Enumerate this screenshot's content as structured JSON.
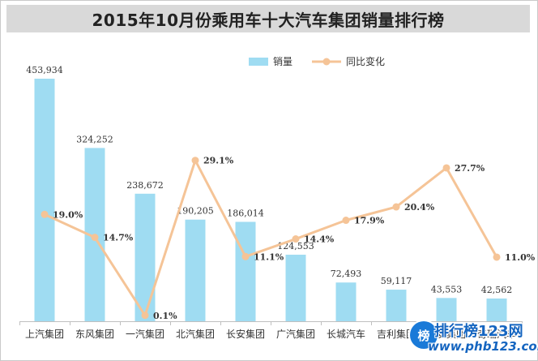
{
  "colors": {
    "bar": "#9fdcf2",
    "line": "#f5c497",
    "marker": "#f5c497",
    "title_bg": "#d9d9d9",
    "title_text": "#222222",
    "axis": "#bfbfbf",
    "label": "#333333"
  },
  "watermark": {
    "logo_text": "榜",
    "name": "排行榜123网",
    "url": "www.phb123.com"
  },
  "chart_data": {
    "type": "bar",
    "title": "2015年10月份乘用车十大汽车集团销量排行榜",
    "categories": [
      "上汽集团",
      "东风集团",
      "一汽集团",
      "北汽集团",
      "长安集团",
      "广汽集团",
      "长城汽车",
      "吉利集团",
      "长安集团",
      "奇瑞汽车"
    ],
    "series": [
      {
        "name": "销量",
        "type": "bar",
        "axis": "left",
        "values": [
          453934,
          324252,
          238672,
          190205,
          186014,
          124553,
          72493,
          59117,
          43553,
          42562
        ],
        "labels": [
          "453,934",
          "324,252",
          "238,672",
          "190,205",
          "186,014",
          "124,553",
          "72,493",
          "59,117",
          "43,553",
          "42,562"
        ]
      },
      {
        "name": "同比变化",
        "type": "line",
        "axis": "right",
        "values": [
          19.0,
          14.7,
          0.1,
          29.1,
          11.1,
          14.4,
          17.9,
          20.4,
          27.7,
          11.0
        ],
        "labels": [
          "19.0%",
          "14.7%",
          "0.1%",
          "29.1%",
          "11.1%",
          "14.4%",
          "17.9%",
          "20.4%",
          "27.7%",
          "11.0%"
        ]
      }
    ],
    "ylim_left": [
      0,
      460000
    ],
    "ylim_right": [
      -1,
      45
    ],
    "grid": false,
    "legend_position": "top-right"
  }
}
